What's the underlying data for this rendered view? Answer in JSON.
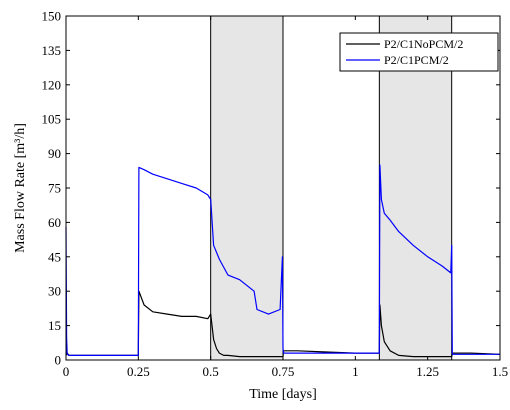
{
  "chart_data": {
    "type": "line",
    "title": "",
    "xlabel": "Time [days]",
    "ylabel": "Mass Flow Rate [m³/h]",
    "xlim": [
      0,
      1.5
    ],
    "ylim": [
      0,
      150
    ],
    "x_ticks": [
      {
        "value": 0,
        "label": "0"
      },
      {
        "value": 0.25,
        "label": "0.25"
      },
      {
        "value": 0.5,
        "label": "0.5"
      },
      {
        "value": 0.75,
        "label": "0.75"
      },
      {
        "value": 1,
        "label": "1"
      },
      {
        "value": 1.25,
        "label": "1.25"
      },
      {
        "value": 1.5,
        "label": "1.5"
      }
    ],
    "y_ticks": [
      {
        "value": 0,
        "label": "0"
      },
      {
        "value": 15,
        "label": "15"
      },
      {
        "value": 30,
        "label": "30"
      },
      {
        "value": 45,
        "label": "45"
      },
      {
        "value": 60,
        "label": "60"
      },
      {
        "value": 75,
        "label": "75"
      },
      {
        "value": 90,
        "label": "90"
      },
      {
        "value": 105,
        "label": "105"
      },
      {
        "value": 120,
        "label": "120"
      },
      {
        "value": 135,
        "label": "135"
      },
      {
        "value": 150,
        "label": "150"
      }
    ],
    "grid": false,
    "legend_position": "top-right",
    "shaded_intervals": [
      {
        "x0": 0.5,
        "x1": 0.75,
        "color": "#e6e6e6"
      },
      {
        "x0": 1.083,
        "x1": 1.333,
        "color": "#e6e6e6"
      }
    ],
    "series": [
      {
        "name": "P2/C1NoPCM/2",
        "color": "#000000",
        "x": [
          0,
          0.004,
          0.01,
          0.1,
          0.2,
          0.245,
          0.25,
          0.252,
          0.27,
          0.3,
          0.35,
          0.4,
          0.45,
          0.49,
          0.5,
          0.51,
          0.52,
          0.53,
          0.545,
          0.56,
          0.6,
          0.7,
          0.75,
          0.752,
          0.8,
          0.9,
          1.0,
          1.08,
          1.083,
          1.085,
          1.09,
          1.1,
          1.12,
          1.15,
          1.2,
          1.3,
          1.333,
          1.336,
          1.4,
          1.5
        ],
        "y": [
          2,
          3,
          2,
          2,
          2,
          2,
          2,
          30,
          24,
          21,
          20,
          19,
          19,
          18,
          20,
          9,
          5,
          3,
          2,
          2,
          1.5,
          1.5,
          1.5,
          4,
          4,
          3.5,
          3,
          3,
          3,
          24,
          15,
          8,
          4,
          2,
          1.5,
          1.5,
          1.5,
          3,
          3,
          2.5
        ]
      },
      {
        "name": "P2/C1PCM/2",
        "color": "#0000ff",
        "x": [
          0,
          0.002,
          0.004,
          0.01,
          0.1,
          0.2,
          0.247,
          0.25,
          0.252,
          0.27,
          0.3,
          0.35,
          0.4,
          0.45,
          0.49,
          0.5,
          0.51,
          0.53,
          0.56,
          0.6,
          0.65,
          0.66,
          0.7,
          0.74,
          0.748,
          0.75,
          0.752,
          0.8,
          0.9,
          1.0,
          1.08,
          1.083,
          1.085,
          1.09,
          1.1,
          1.12,
          1.15,
          1.2,
          1.25,
          1.3,
          1.33,
          1.333,
          1.335,
          1.336,
          1.4,
          1.5
        ],
        "y": [
          58,
          10,
          2.5,
          2,
          2,
          2,
          2,
          2,
          84,
          83,
          81,
          79,
          77,
          75,
          72,
          70,
          50,
          44,
          37,
          35,
          30,
          22,
          20,
          22,
          45,
          5,
          3,
          3,
          3,
          3,
          3,
          3,
          85,
          70,
          64,
          61,
          56,
          50,
          45,
          41,
          38,
          50,
          3,
          2.5,
          2.5,
          2.5
        ]
      }
    ]
  }
}
